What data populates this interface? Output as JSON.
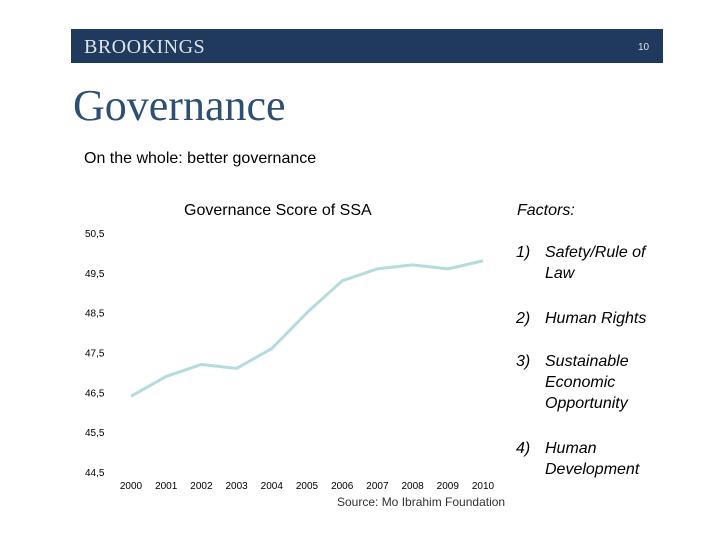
{
  "header": {
    "logo": "BROOKINGS",
    "page_number": "10"
  },
  "slide": {
    "title": "Governance",
    "subtitle": "On the whole: better governance"
  },
  "factors": {
    "heading": "Factors:",
    "items": [
      {
        "num": "1)",
        "text": "Safety/Rule of Law"
      },
      {
        "num": "2)",
        "text": "Human Rights"
      },
      {
        "num": "3)",
        "text": "Sustainable Economic Opportunity"
      },
      {
        "num": "4)",
        "text": "Human Development"
      }
    ]
  },
  "chart_data": {
    "type": "line",
    "title": "Governance Score of SSA",
    "source": "Source: Mo Ibrahim Foundation",
    "x": [
      "2000",
      "2001",
      "2002",
      "2003",
      "2004",
      "2005",
      "2006",
      "2007",
      "2008",
      "2009",
      "2010"
    ],
    "series": [
      {
        "values": [
          46.4,
          46.9,
          47.2,
          47.1,
          47.6,
          48.5,
          49.3,
          49.6,
          49.7,
          49.6,
          49.8
        ]
      }
    ],
    "yticks": [
      "50,5",
      "49,5",
      "48,5",
      "47,5",
      "46,5",
      "45,5",
      "44,5"
    ],
    "ylim": [
      44.5,
      50.5
    ],
    "grid": false,
    "line_color": "#b4dcdc"
  }
}
